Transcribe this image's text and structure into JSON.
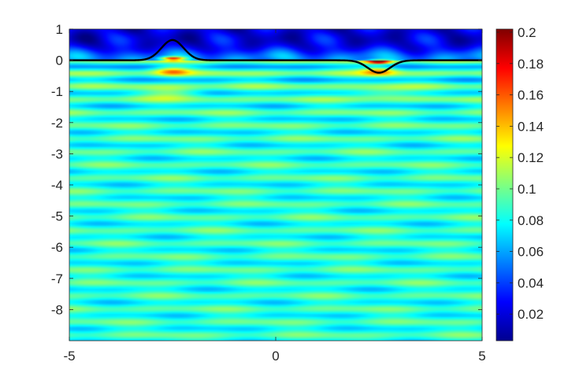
{
  "chart_data": {
    "type": "heatmap",
    "title": "",
    "xlabel": "",
    "ylabel": "",
    "xlim": [
      -5,
      5
    ],
    "ylim": [
      -9,
      1
    ],
    "x_ticks": [
      {
        "value": -5,
        "label": "-5"
      },
      {
        "value": 0,
        "label": "0"
      },
      {
        "value": 5,
        "label": "5"
      }
    ],
    "y_ticks": [
      {
        "value": 1,
        "label": "1"
      },
      {
        "value": 0,
        "label": "0"
      },
      {
        "value": -1,
        "label": "-1"
      },
      {
        "value": -2,
        "label": "-2"
      },
      {
        "value": -3,
        "label": "-3"
      },
      {
        "value": -4,
        "label": "-4"
      },
      {
        "value": -5,
        "label": "-5"
      },
      {
        "value": -6,
        "label": "-6"
      },
      {
        "value": -7,
        "label": "-7"
      },
      {
        "value": -8,
        "label": "-8"
      }
    ],
    "colormap": "jet",
    "colorbar": {
      "range": [
        0.003,
        0.202
      ],
      "ticks": [
        {
          "value": 0.02,
          "label": "0.02"
        },
        {
          "value": 0.04,
          "label": "0.04"
        },
        {
          "value": 0.06,
          "label": "0.06"
        },
        {
          "value": 0.08,
          "label": "0.08"
        },
        {
          "value": 0.1,
          "label": "0.1"
        },
        {
          "value": 0.12,
          "label": "0.12"
        },
        {
          "value": 0.14,
          "label": "0.14"
        },
        {
          "value": 0.16,
          "label": "0.16"
        },
        {
          "value": 0.18,
          "label": "0.18"
        },
        {
          "value": 0.2,
          "label": "0.2"
        }
      ],
      "placement": "right"
    },
    "field": {
      "base_value": 0.085,
      "band_period_y": 0.42,
      "band_amplitude": 0.012,
      "top_region": {
        "y_from": 0,
        "y_to": 1,
        "value": 0.02
      },
      "hotspots": [
        {
          "x": -2.5,
          "y": 0.05,
          "peak": 0.2
        },
        {
          "x": 2.5,
          "y": -0.05,
          "peak": 0.2
        }
      ]
    },
    "interface_curve": {
      "color": "#000000",
      "baseline_y": 0,
      "bumps": [
        {
          "center_x": -2.5,
          "amplitude": 0.65,
          "width": 0.38
        },
        {
          "center_x": 2.5,
          "amplitude": -0.4,
          "width": 0.38
        }
      ]
    },
    "grid": false
  }
}
